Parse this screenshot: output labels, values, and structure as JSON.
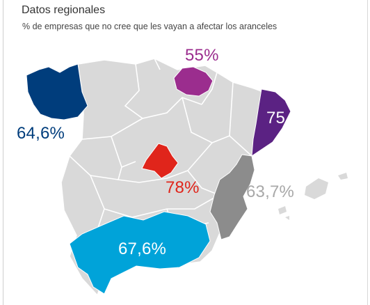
{
  "header": {
    "title": "Datos regionales",
    "subtitle": "% de empresas que no cree que les vayan a afectar los aranceles"
  },
  "colors": {
    "base": "#d9d9d9",
    "border": "#ffffff",
    "galicia": "#003d7c",
    "pais_vasco": "#9b2d8e",
    "cataluna": "#5b2283",
    "madrid": "#e0251b",
    "valencia": "#8c8c8c",
    "andalucia": "#00a3d9",
    "label_gray": "#a8a8a8"
  },
  "regions": {
    "galicia": {
      "name": "Galicia",
      "value": "64,6%"
    },
    "pais_vasco": {
      "name": "País Vasco",
      "value": "55%"
    },
    "cataluna": {
      "name": "Cataluña",
      "value": "75,7%"
    },
    "madrid": {
      "name": "Madrid",
      "value": "78%"
    },
    "valencia": {
      "name": "Comunidad Valenciana",
      "value": "63,7%"
    },
    "andalucia": {
      "name": "Andalucía",
      "value": "67,6%"
    }
  }
}
